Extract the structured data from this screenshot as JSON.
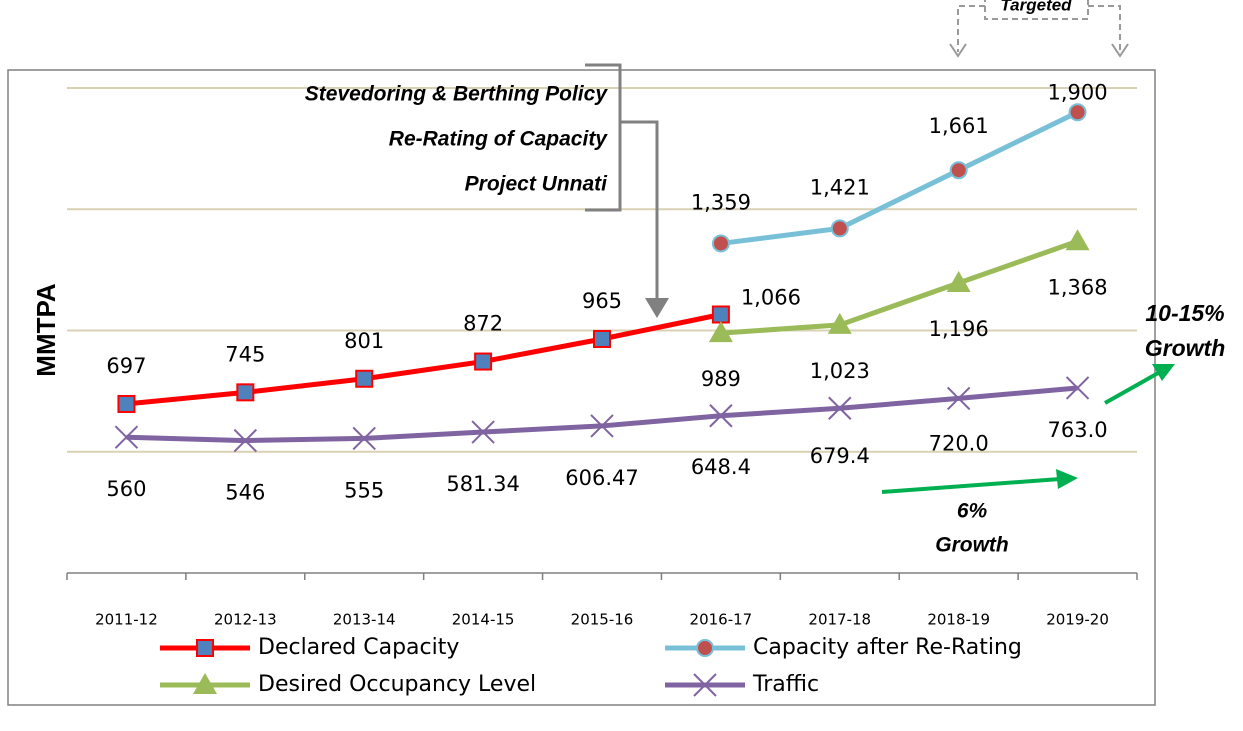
{
  "chart_data": {
    "type": "line",
    "y_axis_label": "MMTPA",
    "categories": [
      "2011-12",
      "2012-13",
      "2013-14",
      "2014-15",
      "2015-16",
      "2016-17",
      "2017-18",
      "2018-19",
      "2019-20"
    ],
    "ylim": [
      0,
      2000
    ],
    "yticks": [
      0,
      500,
      1000,
      1500,
      2000
    ],
    "grid": true,
    "series": [
      {
        "name": "Declared Capacity",
        "color": "#ff0000",
        "marker_color": "#4f81bd",
        "marker": "square",
        "values": [
          697,
          745,
          801,
          872,
          965,
          1066,
          null,
          null,
          null
        ],
        "value_labels": [
          "697",
          "745",
          "801",
          "872",
          "965",
          "1,066",
          null,
          null,
          null
        ]
      },
      {
        "name": "Capacity after Re-Rating",
        "color": "#78c0d8",
        "marker_color": "#c0504d",
        "marker": "circle",
        "values": [
          null,
          null,
          null,
          null,
          null,
          1359,
          1421,
          1661,
          1900
        ],
        "value_labels": [
          null,
          null,
          null,
          null,
          null,
          "1,359",
          "1,421",
          "1,661",
          "1,900"
        ]
      },
      {
        "name": "Desired Occupancy Level",
        "color": "#9bbb59",
        "marker_color": "#9bbb59",
        "marker": "triangle",
        "values": [
          null,
          null,
          null,
          null,
          null,
          989,
          1023,
          1196,
          1368
        ],
        "value_labels": [
          null,
          null,
          null,
          null,
          null,
          "989",
          "1,023",
          "1,196",
          "1,368"
        ]
      },
      {
        "name": "Traffic",
        "color": "#8064a2",
        "marker_color": "#8064a2",
        "marker": "x",
        "values": [
          560,
          546,
          555,
          581.34,
          606.47,
          648.4,
          679.4,
          720.0,
          763.0
        ],
        "value_labels": [
          "560",
          "546",
          "555",
          "581.34",
          "606.47",
          "648.4",
          "679.4",
          "720.0",
          "763.0"
        ]
      }
    ],
    "annotations": {
      "policy_1": "Stevedoring & Berthing Policy",
      "policy_2": "Re-Rating of Capacity",
      "policy_3": "Project Unnati",
      "targeted": "Targeted",
      "growth_high": [
        "10-15%",
        "Growth"
      ],
      "growth_low": [
        "6%",
        "Growth"
      ]
    }
  }
}
